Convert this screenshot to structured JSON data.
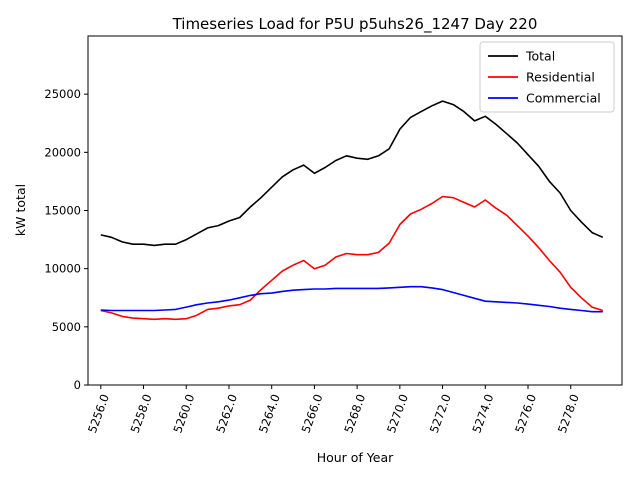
{
  "chart_data": {
    "type": "line",
    "title": "Timeseries Load for P5U p5uhs26_1247  Day 220",
    "xlabel": "Hour of Year",
    "ylabel": "kW total",
    "xlim": [
      5255.4,
      5280.4
    ],
    "ylim": [
      0,
      30000
    ],
    "xticks": [
      5256,
      5258,
      5260,
      5262,
      5264,
      5266,
      5268,
      5270,
      5272,
      5274,
      5276,
      5278
    ],
    "xtick_labels": [
      "5256.0",
      "5258.0",
      "5260.0",
      "5262.0",
      "5264.0",
      "5266.0",
      "5268.0",
      "5270.0",
      "5272.0",
      "5274.0",
      "5276.0",
      "5278.0"
    ],
    "yticks": [
      0,
      5000,
      10000,
      15000,
      20000,
      25000
    ],
    "ytick_labels": [
      "0",
      "5000",
      "10000",
      "15000",
      "20000",
      "25000"
    ],
    "legend_position": "top-right",
    "grid": false,
    "series": [
      {
        "name": "Total",
        "color": "#000000",
        "points": [
          [
            5256.0,
            12900
          ],
          [
            5256.5,
            12700
          ],
          [
            5257.0,
            12300
          ],
          [
            5257.5,
            12100
          ],
          [
            5258.0,
            12100
          ],
          [
            5258.5,
            12000
          ],
          [
            5259.0,
            12100
          ],
          [
            5259.5,
            12100
          ],
          [
            5260.0,
            12500
          ],
          [
            5260.5,
            13000
          ],
          [
            5261.0,
            13500
          ],
          [
            5261.5,
            13700
          ],
          [
            5262.0,
            14100
          ],
          [
            5262.5,
            14400
          ],
          [
            5263.0,
            15300
          ],
          [
            5263.5,
            16100
          ],
          [
            5264.0,
            17000
          ],
          [
            5264.5,
            17900
          ],
          [
            5265.0,
            18500
          ],
          [
            5265.5,
            18900
          ],
          [
            5266.0,
            18200
          ],
          [
            5266.5,
            18700
          ],
          [
            5267.0,
            19300
          ],
          [
            5267.5,
            19700
          ],
          [
            5268.0,
            19500
          ],
          [
            5268.5,
            19400
          ],
          [
            5269.0,
            19700
          ],
          [
            5269.5,
            20300
          ],
          [
            5270.0,
            22000
          ],
          [
            5270.5,
            23000
          ],
          [
            5271.0,
            23500
          ],
          [
            5271.5,
            24000
          ],
          [
            5272.0,
            24400
          ],
          [
            5272.5,
            24100
          ],
          [
            5273.0,
            23500
          ],
          [
            5273.5,
            22700
          ],
          [
            5274.0,
            23100
          ],
          [
            5274.5,
            22400
          ],
          [
            5275.0,
            21600
          ],
          [
            5275.5,
            20800
          ],
          [
            5276.0,
            19800
          ],
          [
            5276.5,
            18800
          ],
          [
            5277.0,
            17500
          ],
          [
            5277.5,
            16500
          ],
          [
            5278.0,
            15000
          ],
          [
            5278.5,
            14000
          ],
          [
            5279.0,
            13100
          ],
          [
            5279.5,
            12700
          ]
        ]
      },
      {
        "name": "Residential",
        "color": "#ff0000",
        "points": [
          [
            5256.0,
            6400
          ],
          [
            5256.5,
            6200
          ],
          [
            5257.0,
            5900
          ],
          [
            5257.5,
            5750
          ],
          [
            5258.0,
            5700
          ],
          [
            5258.5,
            5650
          ],
          [
            5259.0,
            5700
          ],
          [
            5259.5,
            5650
          ],
          [
            5260.0,
            5700
          ],
          [
            5260.5,
            6000
          ],
          [
            5261.0,
            6500
          ],
          [
            5261.5,
            6600
          ],
          [
            5262.0,
            6800
          ],
          [
            5262.5,
            6900
          ],
          [
            5263.0,
            7300
          ],
          [
            5263.5,
            8200
          ],
          [
            5264.0,
            9000
          ],
          [
            5264.5,
            9800
          ],
          [
            5265.0,
            10300
          ],
          [
            5265.5,
            10700
          ],
          [
            5266.0,
            10000
          ],
          [
            5266.5,
            10300
          ],
          [
            5267.0,
            11000
          ],
          [
            5267.5,
            11300
          ],
          [
            5268.0,
            11200
          ],
          [
            5268.5,
            11200
          ],
          [
            5269.0,
            11400
          ],
          [
            5269.5,
            12200
          ],
          [
            5270.0,
            13800
          ],
          [
            5270.5,
            14700
          ],
          [
            5271.0,
            15100
          ],
          [
            5271.5,
            15600
          ],
          [
            5272.0,
            16200
          ],
          [
            5272.5,
            16100
          ],
          [
            5273.0,
            15700
          ],
          [
            5273.5,
            15300
          ],
          [
            5274.0,
            15900
          ],
          [
            5274.5,
            15200
          ],
          [
            5275.0,
            14600
          ],
          [
            5275.5,
            13700
          ],
          [
            5276.0,
            12800
          ],
          [
            5276.5,
            11800
          ],
          [
            5277.0,
            10700
          ],
          [
            5277.5,
            9700
          ],
          [
            5278.0,
            8400
          ],
          [
            5278.5,
            7500
          ],
          [
            5279.0,
            6700
          ],
          [
            5279.5,
            6400
          ]
        ]
      },
      {
        "name": "Commercial",
        "color": "#0000ff",
        "points": [
          [
            5256.0,
            6450
          ],
          [
            5256.5,
            6400
          ],
          [
            5257.0,
            6400
          ],
          [
            5257.5,
            6400
          ],
          [
            5258.0,
            6400
          ],
          [
            5258.5,
            6400
          ],
          [
            5259.0,
            6450
          ],
          [
            5259.5,
            6500
          ],
          [
            5260.0,
            6700
          ],
          [
            5260.5,
            6900
          ],
          [
            5261.0,
            7050
          ],
          [
            5261.5,
            7150
          ],
          [
            5262.0,
            7300
          ],
          [
            5262.5,
            7500
          ],
          [
            5263.0,
            7700
          ],
          [
            5263.5,
            7850
          ],
          [
            5264.0,
            7900
          ],
          [
            5264.5,
            8050
          ],
          [
            5265.0,
            8150
          ],
          [
            5265.5,
            8200
          ],
          [
            5266.0,
            8250
          ],
          [
            5266.5,
            8250
          ],
          [
            5267.0,
            8300
          ],
          [
            5267.5,
            8300
          ],
          [
            5268.0,
            8300
          ],
          [
            5268.5,
            8300
          ],
          [
            5269.0,
            8300
          ],
          [
            5269.5,
            8350
          ],
          [
            5270.0,
            8400
          ],
          [
            5270.5,
            8450
          ],
          [
            5271.0,
            8450
          ],
          [
            5271.5,
            8350
          ],
          [
            5272.0,
            8200
          ],
          [
            5272.5,
            7950
          ],
          [
            5273.0,
            7700
          ],
          [
            5273.5,
            7450
          ],
          [
            5274.0,
            7200
          ],
          [
            5274.5,
            7150
          ],
          [
            5275.0,
            7100
          ],
          [
            5275.5,
            7050
          ],
          [
            5276.0,
            6950
          ],
          [
            5276.5,
            6850
          ],
          [
            5277.0,
            6750
          ],
          [
            5277.5,
            6600
          ],
          [
            5278.0,
            6500
          ],
          [
            5278.5,
            6400
          ],
          [
            5279.0,
            6300
          ],
          [
            5279.5,
            6300
          ]
        ]
      }
    ]
  }
}
